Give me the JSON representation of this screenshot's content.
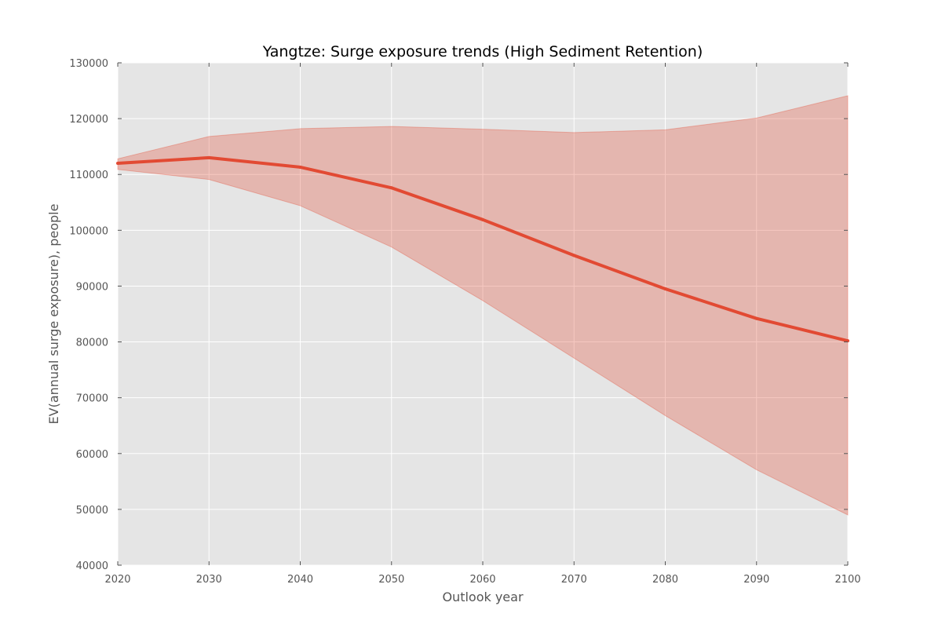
{
  "chart_data": {
    "type": "area",
    "title": "Yangtze: Surge exposure trends (High Sediment Retention)",
    "xlabel": "Outlook year",
    "ylabel": "EV(annual surge exposure), people",
    "xlim": [
      2020,
      2100
    ],
    "ylim": [
      40000,
      130000
    ],
    "x_ticks": [
      "2020",
      "2030",
      "2040",
      "2050",
      "2060",
      "2070",
      "2080",
      "2090",
      "2100"
    ],
    "y_ticks": [
      "40000",
      "50000",
      "60000",
      "70000",
      "80000",
      "90000",
      "100000",
      "110000",
      "120000",
      "130000"
    ],
    "grid": true,
    "x": [
      2020,
      2030,
      2040,
      2050,
      2060,
      2070,
      2080,
      2090,
      2100
    ],
    "series": [
      {
        "type": "line",
        "values": [
          112000,
          113000,
          111300,
          107600,
          101900,
          95500,
          89500,
          84200,
          80200
        ]
      },
      {
        "type": "band",
        "lower": [
          110900,
          109100,
          104400,
          97000,
          87400,
          77100,
          66800,
          57100,
          49000
        ],
        "upper": [
          112800,
          116800,
          118200,
          118600,
          118100,
          117500,
          118000,
          120100,
          124100
        ]
      }
    ],
    "colors": {
      "background": "#e5e5e5",
      "line": "#e24a33",
      "band": "#e24a33",
      "grid": "#ffffff"
    }
  }
}
